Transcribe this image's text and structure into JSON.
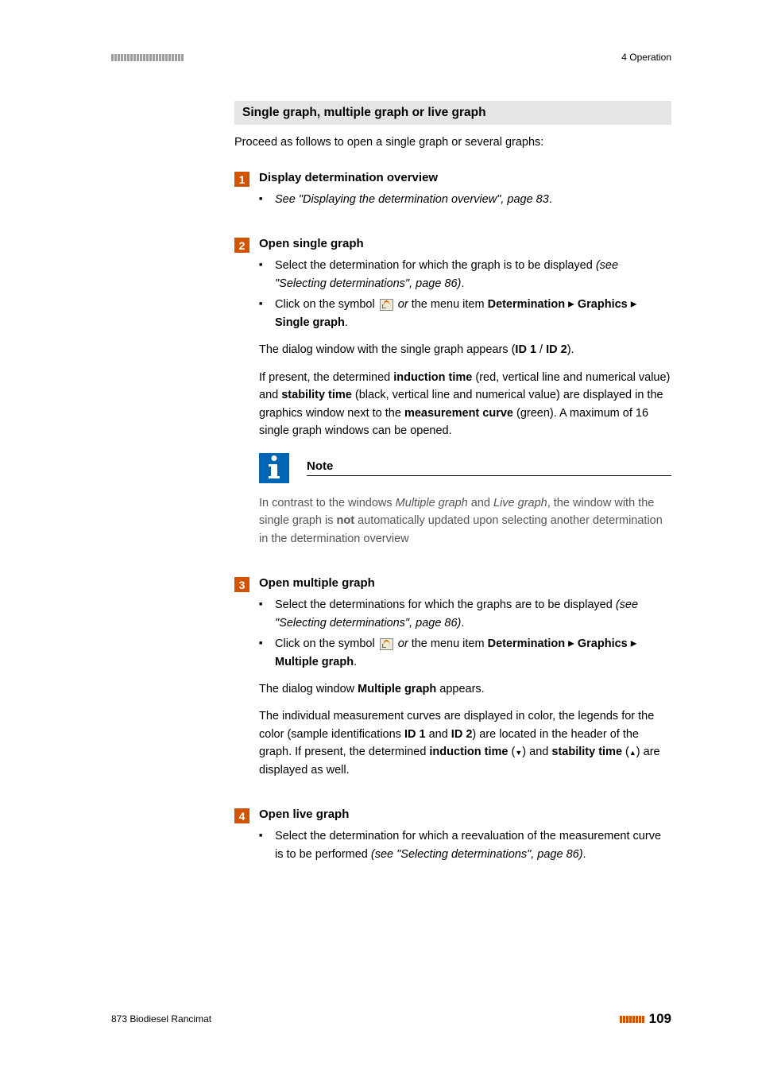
{
  "header": {
    "bar_count": 23,
    "right_text": "4 Operation"
  },
  "section": {
    "title": "Single graph, multiple graph or live graph",
    "intro": "Proceed as follows to open a single graph or several graphs:"
  },
  "step1": {
    "num": "1",
    "title": "Display determination overview",
    "bullet1_prefix": "See \"Displaying the determination overview\", page 83",
    "bullet1_suffix": "."
  },
  "step2": {
    "num": "2",
    "title": "Open single graph",
    "b1_a": "Select the determination for which the graph is to be displayed ",
    "b1_b": "(see \"Selecting determinations\", page 86)",
    "b1_c": ".",
    "b2_a": "Click on the symbol ",
    "b2_b": " or",
    "b2_c": " the menu item ",
    "b2_d": "Determina­tion",
    "b2_e": "Graphics",
    "b2_f": "Single graph",
    "b2_g": ".",
    "p1_a": "The dialog window with the single graph appears (",
    "p1_b": "ID 1",
    "p1_c": " / ",
    "p1_d": "ID 2",
    "p1_e": ").",
    "p2_a": "If present, the determined ",
    "p2_b": "induction time",
    "p2_c": " (red, vertical line and numerical value) and ",
    "p2_d": "stability time",
    "p2_e": " (black, vertical line and numerical value) are displayed in the graphics window next to the ",
    "p2_f": "measurement curve",
    "p2_g": " (green). A maximum of 16 single graph windows can be opened.",
    "note_label": "Note",
    "note_a": "In contrast to the windows ",
    "note_b": "Multiple graph",
    "note_c": " and ",
    "note_d": "Live graph",
    "note_e": ", the win­dow with the single graph is ",
    "note_f": "not",
    "note_g": " automatically updated upon selecting another determination in the determination overview"
  },
  "step3": {
    "num": "3",
    "title": "Open multiple graph",
    "b1_a": "Select the determinations for which the graphs are to be displayed ",
    "b1_b": "(see \"Selecting determinations\", page 86)",
    "b1_c": ".",
    "b2_a": "Click on the symbol ",
    "b2_b": " or",
    "b2_c": " the menu item ",
    "b2_d": "Determina­tion",
    "b2_e": "Graphics",
    "b2_f": "Multiple graph",
    "b2_g": ".",
    "p1_a": "The dialog window ",
    "p1_b": "Multiple graph",
    "p1_c": " appears.",
    "p2_a": "The individual measurement curves are displayed in color, the legends for the color (sample identifications ",
    "p2_b": "ID 1",
    "p2_c": " and ",
    "p2_d": "ID 2",
    "p2_e": ") are located in the header of the graph. If present, the determined ",
    "p2_f": "induction time",
    "p2_g": " (",
    "p2_h": ") and ",
    "p2_i": "stability time",
    "p2_j": " (",
    "p2_k": ") are displayed as well."
  },
  "step4": {
    "num": "4",
    "title": "Open live graph",
    "b1_a": "Select the determination for which a reevaluation of the measure­ment curve is to be performed ",
    "b1_b": "(see \"Selecting determinations\", page 86)",
    "b1_c": "."
  },
  "footer": {
    "left": "873 Biodiesel Rancimat",
    "bar_count": 8,
    "page": "109"
  },
  "colors": {
    "orange": "#d35400",
    "blue": "#0066b3",
    "gray_bg": "#e5e5e5",
    "header_bar": "#9d9d9d"
  }
}
